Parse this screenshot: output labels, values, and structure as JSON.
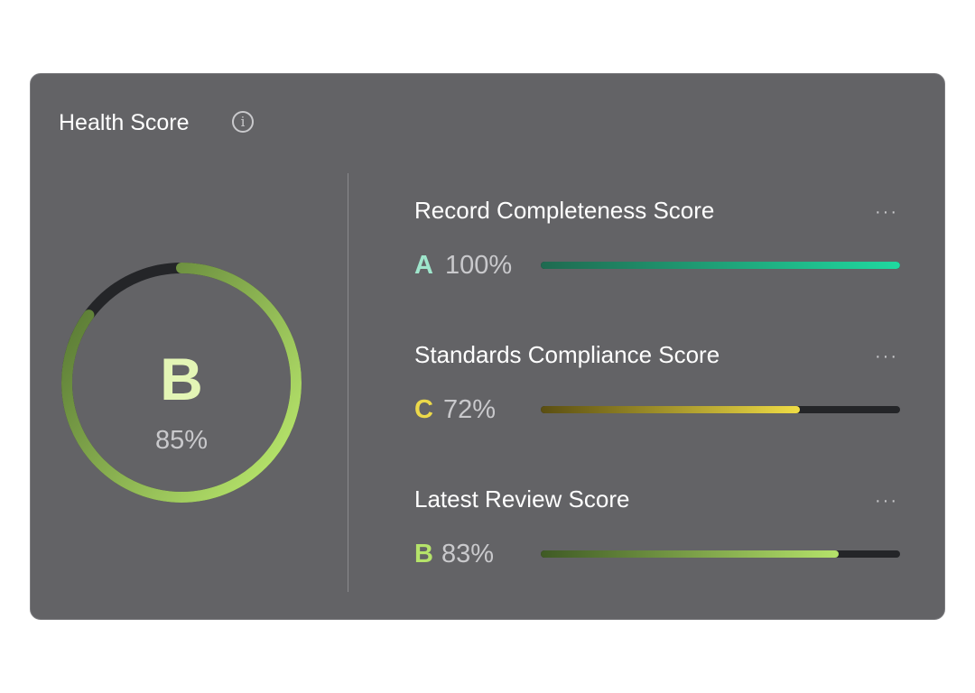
{
  "card": {
    "title": "Health Score",
    "info_icon": "info-icon"
  },
  "overall": {
    "grade": "B",
    "percent_label": "85%",
    "value": 85,
    "color_start": "#5a7a35",
    "color_end": "#b5e36a",
    "track_color": "#242528"
  },
  "metrics": [
    {
      "label": "Record Completeness Score",
      "grade": "A",
      "percent_label": "100%",
      "value": 100,
      "grade_color": "#9fe6cc",
      "gradient": [
        "#1f6a50",
        "#1fd9a0"
      ]
    },
    {
      "label": "Standards Compliance Score",
      "grade": "C",
      "percent_label": "72%",
      "value": 72,
      "grade_color": "#ecd94a",
      "gradient": [
        "#5a4e12",
        "#f0dd45"
      ]
    },
    {
      "label": "Latest Review Score",
      "grade": "B",
      "percent_label": "83%",
      "value": 83,
      "grade_color": "#b5e36a",
      "gradient": [
        "#3f5a25",
        "#b5e36a"
      ]
    }
  ],
  "more_label": "···"
}
